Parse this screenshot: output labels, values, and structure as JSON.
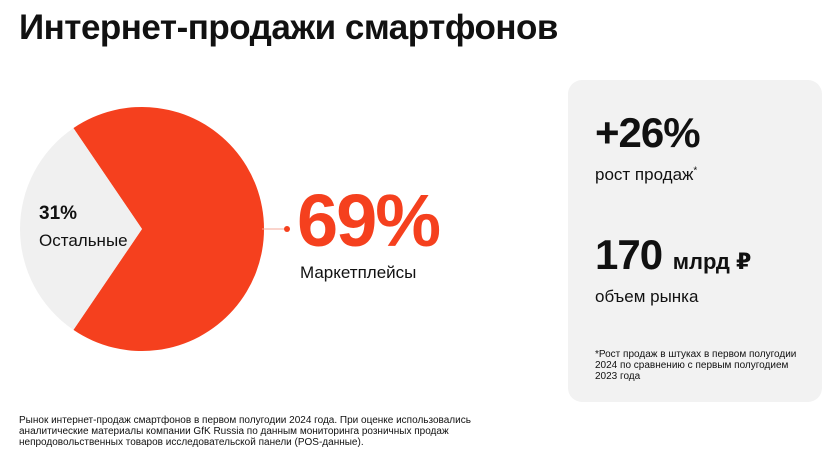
{
  "title": "Интернет-продажи смартфонов",
  "chart_data": {
    "type": "pie",
    "categories": [
      "Маркетплейсы",
      "Остальные"
    ],
    "values": [
      69,
      31
    ],
    "labels": [
      {
        "value": "69%",
        "name": "Маркетплейсы"
      },
      {
        "value": "31%",
        "name": "Остальные"
      }
    ],
    "colors": [
      "#f5401e",
      "#f0f0f0"
    ],
    "legend": "none"
  },
  "stats": {
    "growth_value": "+26%",
    "growth_label": "рост продаж",
    "growth_marker": "*",
    "market_value": "170",
    "market_unit": "млрд ₽",
    "market_label": "объем рынка",
    "note": "*Рост продаж в штуках в первом полугодии 2024 по сравнению с первым полугодием 2023 года"
  },
  "footnote": "Рынок интернет-продаж смартфонов в первом полугодии 2024 года. При оценке использовались аналитические материалы компании GfK Russia по данным мониторинга розничных продаж непродовольственных товаров исследовательской панели (POS-данные).",
  "colors": {
    "accent": "#f5401e",
    "panel_bg": "#f2f2f2",
    "pie_rest": "#f0f0f0",
    "leader_line": "#f5a898"
  }
}
